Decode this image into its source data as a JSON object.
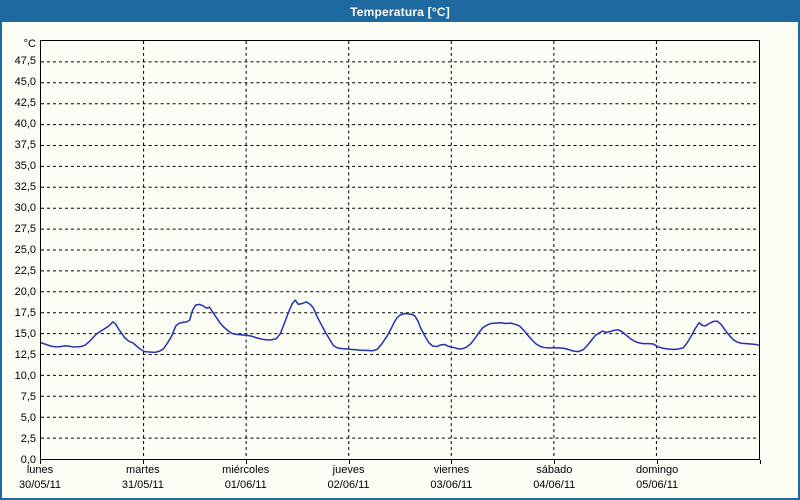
{
  "window": {
    "title": "Temperatura [°C]"
  },
  "colors": {
    "titlebar_bg": "#1d69a0",
    "titlebar_text": "#ffffff",
    "frame_border": "#1d69a0",
    "background": "#fcfdf5",
    "plot_border": "#000000",
    "gridline": "#000000",
    "series_line": "#2330b8"
  },
  "y_axis": {
    "unit_label": "°C",
    "min": 0,
    "max": 50,
    "tick_step": 2.5,
    "ticks": [
      {
        "value": 47.5,
        "label": "47,5"
      },
      {
        "value": 45.0,
        "label": "45,0"
      },
      {
        "value": 42.5,
        "label": "42,5"
      },
      {
        "value": 40.0,
        "label": "40,0"
      },
      {
        "value": 37.5,
        "label": "37,5"
      },
      {
        "value": 35.0,
        "label": "35,0"
      },
      {
        "value": 32.5,
        "label": "32,5"
      },
      {
        "value": 30.0,
        "label": "30,0"
      },
      {
        "value": 27.5,
        "label": "27,5"
      },
      {
        "value": 25.0,
        "label": "25,0"
      },
      {
        "value": 22.5,
        "label": "22,5"
      },
      {
        "value": 20.0,
        "label": "20,0"
      },
      {
        "value": 17.5,
        "label": "17,5"
      },
      {
        "value": 15.0,
        "label": "15,0"
      },
      {
        "value": 12.5,
        "label": "12,5"
      },
      {
        "value": 10.0,
        "label": "10,0"
      },
      {
        "value": 7.5,
        "label": "7,5"
      },
      {
        "value": 5.0,
        "label": "5,0"
      },
      {
        "value": 2.5,
        "label": "2,5"
      },
      {
        "value": 0.0,
        "label": "0,0"
      }
    ]
  },
  "x_axis": {
    "days": [
      {
        "name": "lunes",
        "date": "30/05/11"
      },
      {
        "name": "martes",
        "date": "31/05/11"
      },
      {
        "name": "miércoles",
        "date": "01/06/11"
      },
      {
        "name": "jueves",
        "date": "02/06/11"
      },
      {
        "name": "viernes",
        "date": "03/06/11"
      },
      {
        "name": "sábado",
        "date": "04/06/11"
      },
      {
        "name": "domingo",
        "date": "05/06/11"
      }
    ]
  },
  "chart_data": {
    "type": "line",
    "title": "Temperatura [°C]",
    "ylabel": "°C",
    "ylim": [
      0,
      50
    ],
    "y_tick_step": 2.5,
    "grid": "dashed",
    "legend_position": "none",
    "x_unit": "days since 30/05/11 00:00 (1.0 = one day)",
    "x_range": [
      0,
      7
    ],
    "series": [
      {
        "name": "Temperatura",
        "color": "#2330b8",
        "points": [
          [
            0.0,
            13.9
          ],
          [
            0.049,
            13.7
          ],
          [
            0.097,
            13.5
          ],
          [
            0.146,
            13.4
          ],
          [
            0.194,
            13.45
          ],
          [
            0.233,
            13.55
          ],
          [
            0.272,
            13.5
          ],
          [
            0.311,
            13.4
          ],
          [
            0.35,
            13.4
          ],
          [
            0.389,
            13.45
          ],
          [
            0.428,
            13.6
          ],
          [
            0.467,
            14.0
          ],
          [
            0.506,
            14.5
          ],
          [
            0.544,
            15.0
          ],
          [
            0.583,
            15.3
          ],
          [
            0.622,
            15.6
          ],
          [
            0.661,
            15.9
          ],
          [
            0.7,
            16.4
          ],
          [
            0.729,
            16.1
          ],
          [
            0.758,
            15.5
          ],
          [
            0.788,
            15.0
          ],
          [
            0.817,
            14.5
          ],
          [
            0.856,
            14.1
          ],
          [
            0.894,
            13.9
          ],
          [
            0.933,
            13.5
          ],
          [
            0.972,
            13.1
          ],
          [
            1.011,
            12.85
          ],
          [
            1.06,
            12.8
          ],
          [
            1.108,
            12.75
          ],
          [
            1.157,
            12.9
          ],
          [
            1.196,
            13.2
          ],
          [
            1.235,
            13.9
          ],
          [
            1.274,
            14.7
          ],
          [
            1.313,
            15.9
          ],
          [
            1.342,
            16.2
          ],
          [
            1.381,
            16.35
          ],
          [
            1.42,
            16.4
          ],
          [
            1.449,
            16.6
          ],
          [
            1.478,
            17.8
          ],
          [
            1.507,
            18.4
          ],
          [
            1.546,
            18.5
          ],
          [
            1.585,
            18.3
          ],
          [
            1.614,
            18.05
          ],
          [
            1.643,
            18.15
          ],
          [
            1.672,
            17.6
          ],
          [
            1.711,
            16.9
          ],
          [
            1.75,
            16.2
          ],
          [
            1.789,
            15.7
          ],
          [
            1.828,
            15.3
          ],
          [
            1.867,
            15.0
          ],
          [
            1.906,
            14.9
          ],
          [
            1.954,
            14.85
          ],
          [
            2.003,
            14.8
          ],
          [
            2.051,
            14.7
          ],
          [
            2.1,
            14.5
          ],
          [
            2.149,
            14.35
          ],
          [
            2.197,
            14.25
          ],
          [
            2.246,
            14.25
          ],
          [
            2.295,
            14.4
          ],
          [
            2.333,
            15.0
          ],
          [
            2.372,
            16.2
          ],
          [
            2.411,
            17.5
          ],
          [
            2.45,
            18.6
          ],
          [
            2.479,
            19.0
          ],
          [
            2.508,
            18.5
          ],
          [
            2.547,
            18.6
          ],
          [
            2.586,
            18.8
          ],
          [
            2.625,
            18.5
          ],
          [
            2.654,
            18.1
          ],
          [
            2.693,
            17.0
          ],
          [
            2.732,
            16.1
          ],
          [
            2.771,
            15.2
          ],
          [
            2.81,
            14.4
          ],
          [
            2.849,
            13.6
          ],
          [
            2.888,
            13.3
          ],
          [
            2.936,
            13.2
          ],
          [
            2.985,
            13.15
          ],
          [
            3.033,
            13.1
          ],
          [
            3.082,
            13.05
          ],
          [
            3.131,
            13.0
          ],
          [
            3.179,
            13.0
          ],
          [
            3.228,
            12.95
          ],
          [
            3.276,
            13.1
          ],
          [
            3.325,
            13.8
          ],
          [
            3.374,
            14.7
          ],
          [
            3.413,
            15.6
          ],
          [
            3.442,
            16.3
          ],
          [
            3.471,
            16.9
          ],
          [
            3.5,
            17.2
          ],
          [
            3.529,
            17.35
          ],
          [
            3.558,
            17.4
          ],
          [
            3.588,
            17.35
          ],
          [
            3.617,
            17.3
          ],
          [
            3.646,
            17.1
          ],
          [
            3.675,
            16.5
          ],
          [
            3.704,
            15.6
          ],
          [
            3.743,
            14.7
          ],
          [
            3.782,
            13.9
          ],
          [
            3.821,
            13.5
          ],
          [
            3.86,
            13.45
          ],
          [
            3.899,
            13.65
          ],
          [
            3.938,
            13.7
          ],
          [
            3.967,
            13.5
          ],
          [
            3.996,
            13.4
          ],
          [
            4.035,
            13.3
          ],
          [
            4.074,
            13.15
          ],
          [
            4.113,
            13.2
          ],
          [
            4.151,
            13.4
          ],
          [
            4.19,
            13.8
          ],
          [
            4.229,
            14.4
          ],
          [
            4.268,
            15.1
          ],
          [
            4.307,
            15.7
          ],
          [
            4.346,
            16.0
          ],
          [
            4.385,
            16.2
          ],
          [
            4.433,
            16.25
          ],
          [
            4.482,
            16.3
          ],
          [
            4.531,
            16.2
          ],
          [
            4.579,
            16.25
          ],
          [
            4.628,
            16.1
          ],
          [
            4.667,
            15.9
          ],
          [
            4.706,
            15.4
          ],
          [
            4.745,
            14.8
          ],
          [
            4.783,
            14.3
          ],
          [
            4.822,
            13.8
          ],
          [
            4.861,
            13.5
          ],
          [
            4.9,
            13.35
          ],
          [
            4.949,
            13.3
          ],
          [
            4.997,
            13.3
          ],
          [
            5.046,
            13.3
          ],
          [
            5.095,
            13.25
          ],
          [
            5.143,
            13.1
          ],
          [
            5.192,
            12.9
          ],
          [
            5.241,
            12.85
          ],
          [
            5.289,
            13.1
          ],
          [
            5.328,
            13.6
          ],
          [
            5.367,
            14.2
          ],
          [
            5.406,
            14.8
          ],
          [
            5.445,
            15.1
          ],
          [
            5.474,
            15.3
          ],
          [
            5.513,
            15.15
          ],
          [
            5.552,
            15.25
          ],
          [
            5.591,
            15.4
          ],
          [
            5.63,
            15.45
          ],
          [
            5.668,
            15.2
          ],
          [
            5.707,
            14.8
          ],
          [
            5.746,
            14.4
          ],
          [
            5.785,
            14.1
          ],
          [
            5.824,
            13.9
          ],
          [
            5.872,
            13.8
          ],
          [
            5.921,
            13.8
          ],
          [
            5.97,
            13.75
          ],
          [
            6.018,
            13.4
          ],
          [
            6.067,
            13.25
          ],
          [
            6.116,
            13.15
          ],
          [
            6.164,
            13.1
          ],
          [
            6.213,
            13.15
          ],
          [
            6.262,
            13.3
          ],
          [
            6.3,
            13.9
          ],
          [
            6.339,
            14.7
          ],
          [
            6.378,
            15.6
          ],
          [
            6.417,
            16.3
          ],
          [
            6.446,
            16.0
          ],
          [
            6.475,
            15.9
          ],
          [
            6.514,
            16.2
          ],
          [
            6.553,
            16.45
          ],
          [
            6.592,
            16.5
          ],
          [
            6.631,
            16.1
          ],
          [
            6.67,
            15.4
          ],
          [
            6.709,
            14.8
          ],
          [
            6.747,
            14.3
          ],
          [
            6.786,
            14.0
          ],
          [
            6.825,
            13.85
          ],
          [
            6.874,
            13.8
          ],
          [
            6.922,
            13.75
          ],
          [
            6.971,
            13.7
          ],
          [
            7.0,
            13.6
          ]
        ]
      }
    ]
  }
}
